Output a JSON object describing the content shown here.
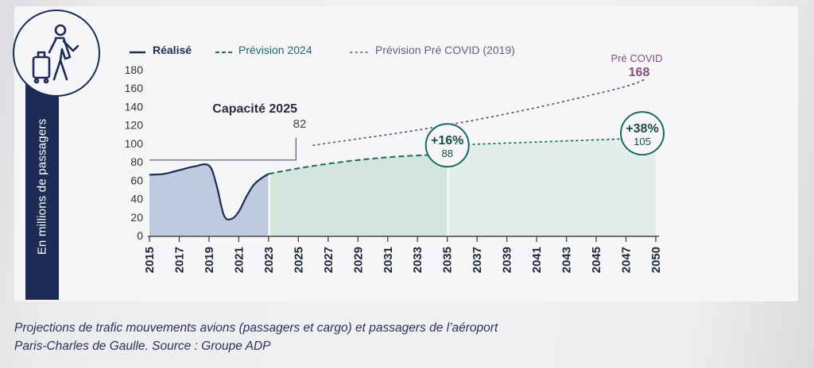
{
  "chart_data": {
    "type": "area",
    "ylabel": "En millions de passagers",
    "ylim": [
      0,
      180
    ],
    "yticks": [
      0,
      20,
      40,
      60,
      80,
      100,
      120,
      140,
      160,
      180
    ],
    "xlim": [
      2015,
      2050
    ],
    "xticks": [
      "2015",
      "2017",
      "2019",
      "2021",
      "2023",
      "2025",
      "2027",
      "2029",
      "2031",
      "2033",
      "2035",
      "2037",
      "2039",
      "2041",
      "2043",
      "2045",
      "2047",
      "2050"
    ],
    "legend": {
      "placement": "top",
      "entries": [
        "Réalisé",
        "Prévision 2024",
        "Prévision Pré COVID (2019)"
      ]
    },
    "series": [
      {
        "name": "Réalisé",
        "style": "solid",
        "x": [
          2015,
          2016,
          2017,
          2018,
          2019,
          2019.5,
          2020,
          2020.5,
          2021,
          2021.5,
          2022,
          2022.5,
          2023
        ],
        "y": [
          66,
          67,
          71,
          75,
          76,
          55,
          22,
          18,
          26,
          42,
          55,
          62,
          67
        ]
      },
      {
        "name": "Prévision 2024",
        "style": "dashed",
        "x": [
          2023,
          2025,
          2027,
          2029,
          2031,
          2033,
          2035
        ],
        "y": [
          67,
          73,
          78,
          82,
          85,
          87,
          88
        ]
      },
      {
        "name": "Prévision 2024 (2035–2050)",
        "style": "dotted",
        "x": [
          2035,
          2050
        ],
        "y": [
          98,
          108
        ]
      },
      {
        "name": "Prévision Pré COVID (2019)",
        "style": "dotted",
        "x": [
          2026,
          2029,
          2032,
          2035,
          2038,
          2041,
          2044,
          2047,
          2049
        ],
        "y": [
          98,
          105,
          112,
          120,
          129,
          139,
          150,
          162,
          170
        ]
      }
    ],
    "capacity": {
      "label": "Capacité 2025",
      "value": "82",
      "level": 82,
      "x_end": 2025
    },
    "annotations": [
      {
        "pct": "+16%",
        "value": "88",
        "x": 2035,
        "y": 98
      },
      {
        "pct": "+38%",
        "value": "105",
        "x": 2050,
        "y": 108
      },
      {
        "label": "Pré COVID",
        "value": "168"
      }
    ],
    "colors": {
      "realise": "#1d2c55",
      "realise_fill": "#bfc9df",
      "prevision": "#1e6b5c",
      "prevision_fill": "#d3e6de",
      "prevision_fill_light": "#e2eee9",
      "precovid": "#8a4f7d",
      "text": "#2a2e3c",
      "axis": "#333333"
    }
  },
  "caption": {
    "line1": "Projections de trafic mouvements avions (passagers et cargo) et passagers de l’aéroport",
    "line2": "Paris-Charles de Gaulle. Source : Groupe ADP"
  }
}
